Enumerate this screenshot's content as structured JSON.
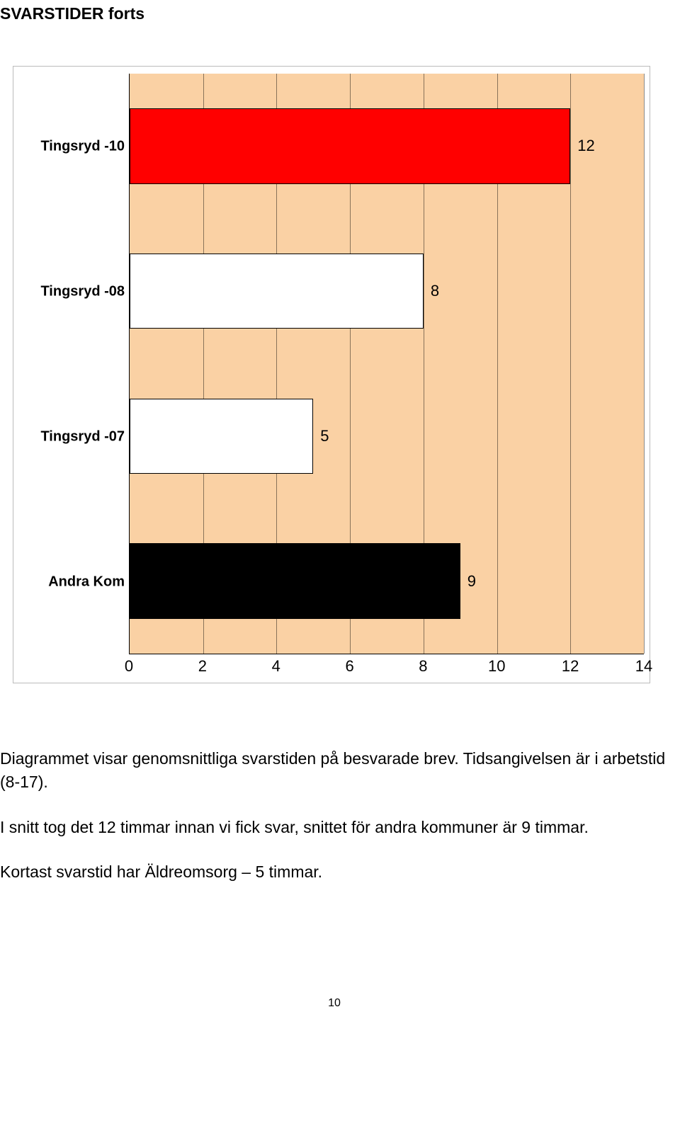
{
  "page_title": "SVARSTIDER forts",
  "chart": {
    "type": "bar-horizontal",
    "background_color": "#fad1a4",
    "grid_color": "rgba(0,0,0,0.45)",
    "xlim": [
      0,
      14
    ],
    "xtick_step": 2,
    "xticks": [
      0,
      2,
      4,
      6,
      8,
      10,
      12,
      14
    ],
    "bar_height_pct": 13,
    "label_fontsize": 20,
    "bars": [
      {
        "label": "Tingsryd -10",
        "value": 12,
        "fill": "#ff0000",
        "border": "#000000",
        "center_pct": 12.5
      },
      {
        "label": "Tingsryd -08",
        "value": 8,
        "fill": "#ffffff",
        "border": "#000000",
        "center_pct": 37.5
      },
      {
        "label": "Tingsryd -07",
        "value": 5,
        "fill": "#ffffff",
        "border": "#000000",
        "center_pct": 62.5
      },
      {
        "label": "Andra Kom",
        "value": 9,
        "fill": "#000000",
        "border": "#000000",
        "center_pct": 87.5
      }
    ]
  },
  "paragraphs": [
    "Diagrammet visar genomsnittliga svarstiden på besvarade brev. Tidsangivelsen är i arbetstid (8-17).",
    "I snitt tog det 12 timmar innan vi fick svar, snittet för andra kommuner är 9 timmar.",
    "Kortast svarstid har Äldreomsorg – 5 timmar."
  ],
  "page_number": "10"
}
